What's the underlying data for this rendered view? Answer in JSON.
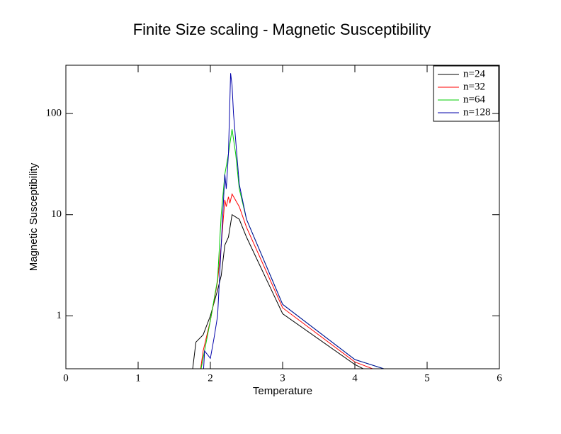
{
  "chart_data": {
    "type": "line",
    "title": "Finite Size scaling - Magnetic Susceptibility",
    "x_label": "Temperature",
    "y_label": "Magnetic Susceptibility",
    "xlim": [
      0,
      6
    ],
    "xticks": [
      0,
      1,
      2,
      3,
      4,
      5,
      6
    ],
    "ylim": [
      0.3,
      300
    ],
    "yticks": [
      1,
      10,
      100
    ],
    "y_scale": "log",
    "legend_position": "upper right",
    "series": [
      {
        "name": "n=24",
        "color": "#000000",
        "x": [
          1.75,
          1.8,
          1.9,
          2.0,
          2.1,
          2.15,
          2.2,
          2.25,
          2.3,
          2.4,
          2.5,
          3.0,
          4.0,
          4.2
        ],
        "values": [
          0.28,
          0.55,
          0.65,
          1.0,
          1.8,
          2.5,
          5,
          6,
          10,
          9,
          6,
          1.05,
          0.33,
          0.28
        ]
      },
      {
        "name": "n=32",
        "color": "#ff0000",
        "x": [
          1.85,
          1.9,
          2.0,
          2.1,
          2.15,
          2.2,
          2.22,
          2.25,
          2.27,
          2.3,
          2.4,
          2.5,
          3.0,
          4.0,
          4.3
        ],
        "values": [
          0.25,
          0.45,
          0.9,
          2.2,
          5,
          14,
          12,
          15,
          13,
          16,
          12,
          7.5,
          1.2,
          0.35,
          0.29
        ]
      },
      {
        "name": "n=64",
        "color": "#00cc00",
        "x": [
          1.85,
          2.0,
          2.1,
          2.15,
          2.2,
          2.25,
          2.3,
          2.35,
          2.4,
          2.5,
          3.0,
          4.0,
          4.4
        ],
        "values": [
          0.25,
          0.9,
          2.3,
          10,
          25,
          40,
          70,
          40,
          18,
          9,
          1.3,
          0.37,
          0.3
        ]
      },
      {
        "name": "n=128",
        "color": "#0000aa",
        "x": [
          1.9,
          1.92,
          2.0,
          2.05,
          2.1,
          2.15,
          2.2,
          2.22,
          2.25,
          2.28,
          2.3,
          2.32,
          2.4,
          2.5,
          3.0,
          4.0,
          4.4
        ],
        "values": [
          0.25,
          0.45,
          0.38,
          0.6,
          1.0,
          5,
          25,
          18,
          40,
          250,
          190,
          100,
          20,
          9,
          1.3,
          0.37,
          0.3
        ]
      }
    ]
  }
}
